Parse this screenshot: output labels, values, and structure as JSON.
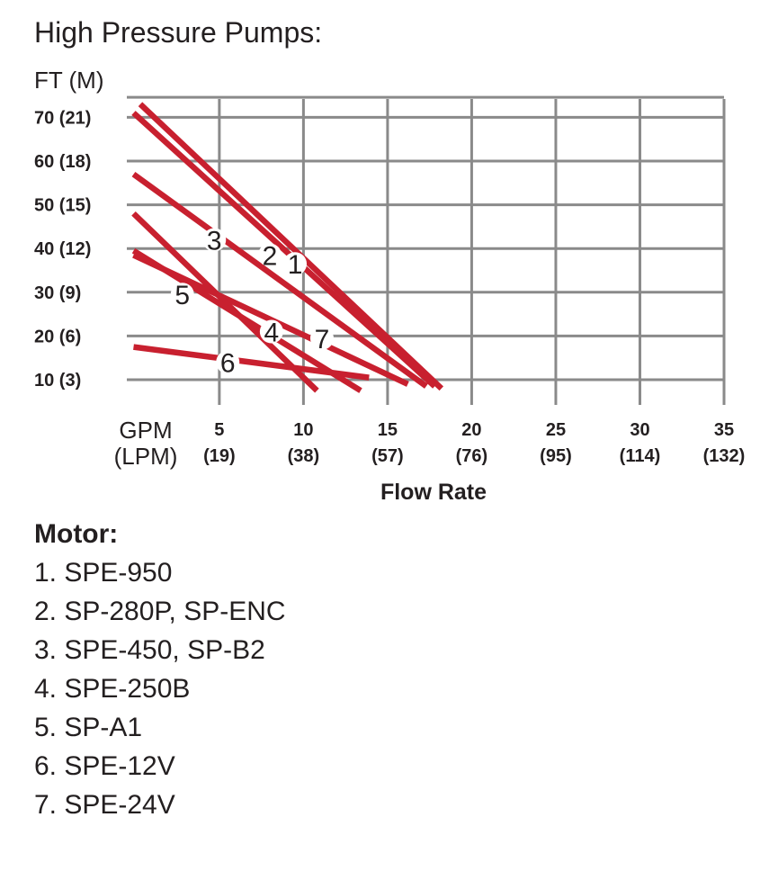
{
  "title": "High Pressure Pumps:",
  "chart_data": {
    "type": "line",
    "y_title": "FT (M)",
    "y_ticks": [
      {
        "value": 10,
        "label": "10 (3)"
      },
      {
        "value": 20,
        "label": "20 (6)"
      },
      {
        "value": 30,
        "label": "30 (9)"
      },
      {
        "value": 40,
        "label": "40 (12)"
      },
      {
        "value": 50,
        "label": "50 (15)"
      },
      {
        "value": 60,
        "label": "60 (18)"
      },
      {
        "value": 70,
        "label": "70 (21)"
      }
    ],
    "x_unit_top": "GPM",
    "x_unit_bottom": "(LPM)",
    "x_ticks": [
      {
        "value": 5,
        "top": "5",
        "bottom": "(19)"
      },
      {
        "value": 10,
        "top": "10",
        "bottom": "(38)"
      },
      {
        "value": 15,
        "top": "15",
        "bottom": "(57)"
      },
      {
        "value": 20,
        "top": "20",
        "bottom": "(76)"
      },
      {
        "value": 25,
        "top": "25",
        "bottom": "(95)"
      },
      {
        "value": 30,
        "top": "30",
        "bottom": "(114)"
      },
      {
        "value": 35,
        "top": "35",
        "bottom": "(132)"
      }
    ],
    "xlabel": "Flow Rate",
    "xlim": [
      -0.5,
      35
    ],
    "ylim": [
      5,
      75
    ],
    "grid": true,
    "line_color": "#c8202f",
    "series": [
      {
        "name": "1",
        "label_at": [
          9.5,
          36.5
        ],
        "points": [
          [
            0.3,
            73
          ],
          [
            18.2,
            8
          ]
        ]
      },
      {
        "name": "2",
        "label_at": [
          8.0,
          38.5
        ],
        "points": [
          [
            -0.1,
            71
          ],
          [
            17.8,
            8.5
          ]
        ]
      },
      {
        "name": "3",
        "label_at": [
          4.7,
          42
        ],
        "points": [
          [
            -0.1,
            57
          ],
          [
            17.3,
            8.5
          ]
        ]
      },
      {
        "name": "4",
        "label_at": [
          8.1,
          21
        ],
        "points": [
          [
            -0.1,
            38.5
          ],
          [
            16.2,
            9
          ]
        ]
      },
      {
        "name": "5",
        "label_at": [
          2.8,
          29.5
        ],
        "points": [
          [
            -0.1,
            48
          ],
          [
            10.8,
            7.5
          ]
        ]
      },
      {
        "name": "6",
        "label_at": [
          5.5,
          14
        ],
        "points": [
          [
            -0.1,
            17.5
          ],
          [
            13.9,
            10.5
          ]
        ]
      },
      {
        "name": "7",
        "label_at": [
          11.1,
          19.5
        ],
        "points": [
          [
            -0.1,
            39.5
          ],
          [
            13.4,
            7.5
          ]
        ]
      }
    ]
  },
  "legend": {
    "heading": "Motor:",
    "items": [
      "1. SPE-950",
      "2. SP-280P, SP-ENC",
      "3. SPE-450, SP-B2",
      "4. SPE-250B",
      "5. SP-A1",
      "6. SPE-12V",
      "7. SPE-24V"
    ]
  }
}
